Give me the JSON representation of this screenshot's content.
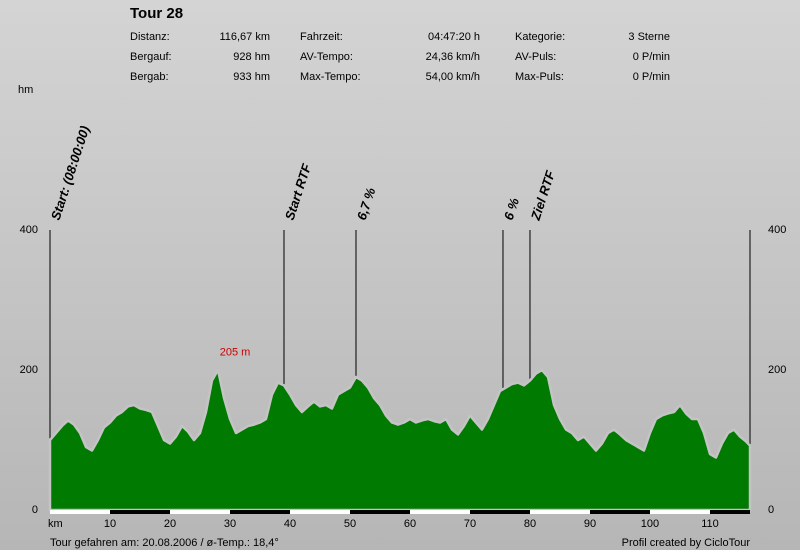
{
  "chart_data": {
    "type": "area",
    "title": "Tour 28",
    "stats": [
      [
        [
          "Distanz:",
          "116,67 km"
        ],
        [
          "Fahrzeit:",
          "04:47:20 h"
        ],
        [
          "Kategorie:",
          "3 Sterne"
        ]
      ],
      [
        [
          "Bergauf:",
          "928 hm"
        ],
        [
          "AV-Tempo:",
          "24,36 km/h"
        ],
        [
          "AV-Puls:",
          "0 P/min"
        ]
      ],
      [
        [
          "Bergab:",
          "933 hm"
        ],
        [
          "Max-Tempo:",
          "54,00 km/h"
        ],
        [
          "Max-Puls:",
          "0 P/min"
        ]
      ]
    ],
    "y_label": "hm",
    "x_label": "km",
    "color": "#007a00",
    "x": [
      0,
      1,
      2,
      3,
      4,
      5,
      6,
      7,
      8,
      9,
      10,
      11,
      12,
      13,
      14,
      15,
      16,
      17,
      18,
      19,
      20,
      21,
      22,
      23,
      24,
      25,
      26,
      27,
      28,
      29,
      30,
      31,
      32,
      33,
      34,
      35,
      36,
      37,
      38,
      39,
      40,
      41,
      42,
      43,
      44,
      45,
      46,
      47,
      48,
      49,
      50,
      51,
      52,
      53,
      54,
      55,
      56,
      57,
      58,
      59,
      60,
      61,
      62,
      63,
      64,
      65,
      66,
      67,
      68,
      69,
      70,
      71,
      72,
      73,
      74,
      75,
      76,
      77,
      78,
      79,
      80,
      81,
      82,
      83,
      84,
      85,
      86,
      87,
      88,
      89,
      90,
      91,
      92,
      93,
      94,
      95,
      96,
      97,
      98,
      99,
      100,
      101,
      102,
      103,
      104,
      105,
      106,
      107,
      108,
      109,
      110,
      111,
      112,
      113,
      114,
      115,
      116,
      116.67
    ],
    "values": [
      100,
      110,
      120,
      128,
      122,
      110,
      90,
      85,
      100,
      118,
      125,
      135,
      140,
      148,
      150,
      145,
      143,
      140,
      120,
      100,
      95,
      105,
      120,
      112,
      100,
      110,
      140,
      185,
      200,
      160,
      130,
      110,
      115,
      120,
      122,
      125,
      130,
      165,
      182,
      178,
      165,
      150,
      140,
      148,
      155,
      148,
      150,
      145,
      165,
      170,
      175,
      190,
      185,
      175,
      160,
      150,
      135,
      125,
      122,
      125,
      130,
      125,
      128,
      130,
      127,
      125,
      130,
      115,
      108,
      120,
      135,
      125,
      115,
      130,
      150,
      170,
      175,
      180,
      182,
      178,
      185,
      195,
      200,
      190,
      150,
      130,
      115,
      110,
      100,
      105,
      95,
      85,
      95,
      110,
      115,
      108,
      100,
      95,
      90,
      85,
      110,
      130,
      135,
      138,
      140,
      150,
      138,
      130,
      130,
      110,
      80,
      75,
      95,
      110,
      115,
      105,
      98,
      92
    ],
    "xlim": [
      0,
      116.67
    ],
    "ylim": [
      0,
      400
    ],
    "yticks": [
      0,
      200,
      400
    ],
    "xticks": [
      10,
      20,
      30,
      40,
      50,
      60,
      70,
      80,
      90,
      100,
      110
    ],
    "markers": [
      {
        "x": 0,
        "label": "Start: (08:00:00)"
      },
      {
        "x": 39,
        "label": "Start RTF"
      },
      {
        "x": 51,
        "label": "6,7 %"
      },
      {
        "x": 75.5,
        "label": "6 %"
      },
      {
        "x": 80,
        "label": "Ziel RTF"
      }
    ],
    "annotations": [
      {
        "x": 27.5,
        "y": 205,
        "text": "205 m"
      }
    ],
    "footer_left": "Tour gefahren am: 20.08.2006  /  ø-Temp.: 18,4°",
    "footer_right": "Profil created by CicloTour"
  }
}
